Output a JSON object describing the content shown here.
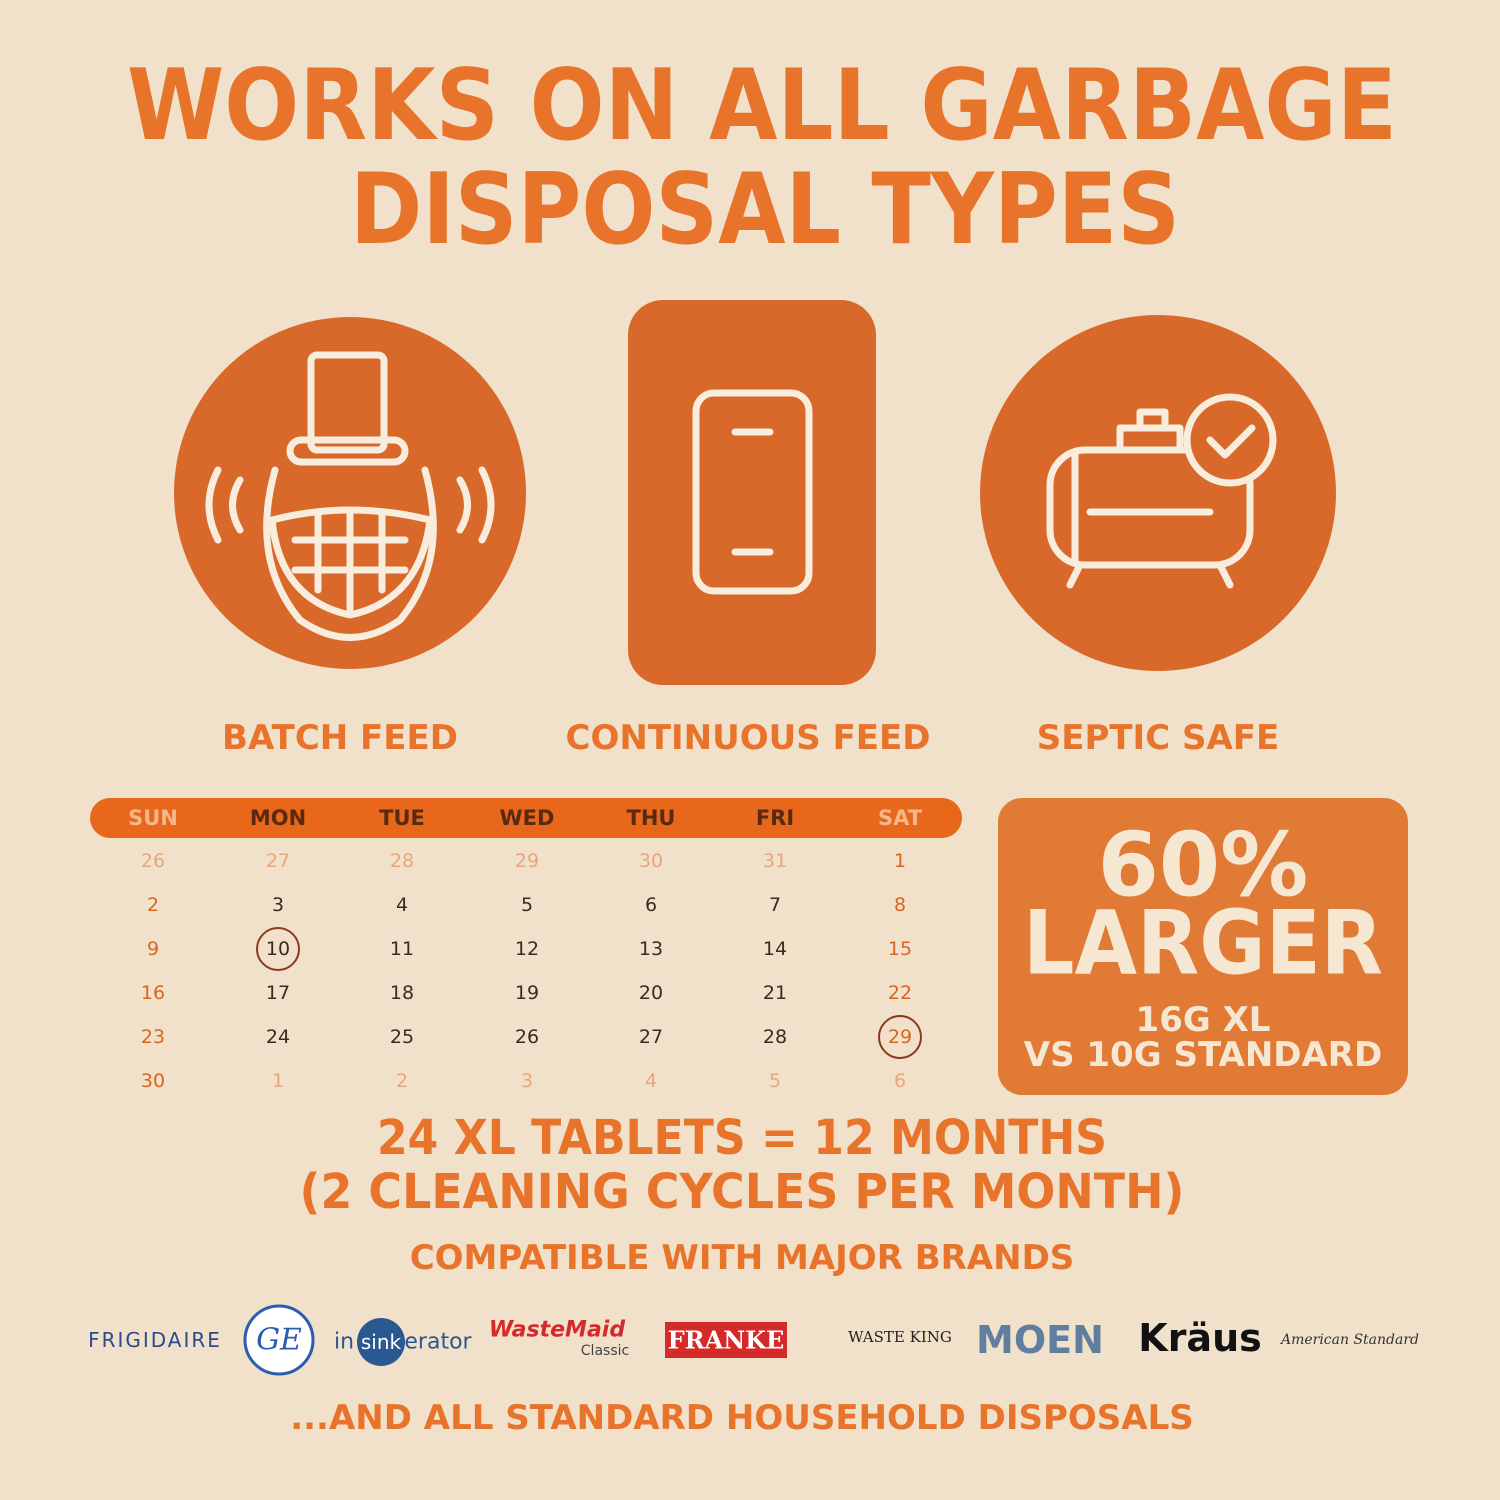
{
  "header": {
    "title_lines": [
      "WORKS ON ALL GARBAGE",
      "DISPOSAL TYPES"
    ]
  },
  "features": [
    {
      "label": "BATCH FEED"
    },
    {
      "label": "CONTINUOUS FEED"
    },
    {
      "label": "SEPTIC SAFE"
    }
  ],
  "calendar": {
    "weekdays": [
      "SUN",
      "MON",
      "TUE",
      "WED",
      "THU",
      "FRI",
      "SAT"
    ],
    "weeks": [
      [
        26,
        27,
        28,
        29,
        30,
        31,
        1
      ],
      [
        2,
        3,
        4,
        5,
        6,
        7,
        8
      ],
      [
        9,
        10,
        11,
        12,
        13,
        14,
        15
      ],
      [
        16,
        17,
        18,
        19,
        20,
        21,
        22
      ],
      [
        23,
        24,
        25,
        26,
        27,
        28,
        29
      ],
      [
        30,
        1,
        2,
        3,
        4,
        5,
        6
      ]
    ]
  },
  "badge": {
    "big": [
      "60%",
      "LARGER"
    ],
    "small": [
      "16G XL",
      "VS 10G STANDARD"
    ]
  },
  "summary": {
    "lines": [
      "24 XL TABLETS = 12 MONTHS",
      "(2 CLEANING CYCLES PER MONTH)"
    ]
  },
  "brands": {
    "heading": "COMPATIBLE WITH MAJOR BRANDS",
    "logos": {
      "frigidaire": "FRIGIDAIRE",
      "ge": "GE",
      "insinkerator": [
        "in",
        "sink",
        "erator"
      ],
      "wastemaid": [
        "WasteMaid",
        "Classic"
      ],
      "franke": "FRANKE",
      "wasteking": "WASTE KING",
      "moen": "MOEN",
      "kraus": "Kräus",
      "american_standard": "American Standard"
    },
    "footer": "...AND ALL STANDARD HOUSEHOLD DISPOSALS"
  }
}
